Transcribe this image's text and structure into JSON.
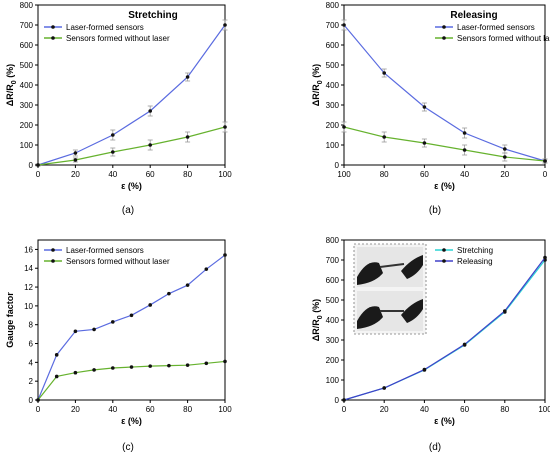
{
  "figure": {
    "panel_labels": [
      "(a)",
      "(b)",
      "(c)",
      "(d)"
    ]
  },
  "chart_data": [
    {
      "type": "line",
      "title": "Stretching",
      "xlabel": "ε (%)",
      "ylabel": "ΔR/R",
      "ylabel_sub": "0",
      "ylabel_unit": " (%)",
      "xlim": [
        0,
        100
      ],
      "ylim": [
        0,
        800
      ],
      "x_ticks": [
        0,
        20,
        40,
        60,
        80,
        100
      ],
      "y_ticks": [
        0,
        100,
        200,
        300,
        400,
        500,
        600,
        700,
        800
      ],
      "x": [
        0,
        20,
        40,
        60,
        80,
        100
      ],
      "legend": "top-left",
      "grid": false,
      "series": [
        {
          "name": "Laser-formed sensors",
          "color": "#5a6be0",
          "values": [
            0,
            60,
            150,
            270,
            440,
            700
          ],
          "errors": [
            5,
            15,
            25,
            25,
            20,
            25
          ]
        },
        {
          "name": "Sensors formed without laser",
          "color": "#66b22e",
          "values": [
            0,
            25,
            65,
            100,
            140,
            190
          ],
          "errors": [
            5,
            10,
            20,
            25,
            25,
            25
          ]
        }
      ]
    },
    {
      "type": "line",
      "title": "Releasing",
      "xlabel": "ε (%)",
      "ylabel": "ΔR/R",
      "ylabel_sub": "0",
      "ylabel_unit": " (%)",
      "x_reversed": true,
      "xlim": [
        100,
        0
      ],
      "ylim": [
        0,
        800
      ],
      "x_ticks": [
        100,
        80,
        60,
        40,
        20,
        0
      ],
      "y_ticks": [
        0,
        100,
        200,
        300,
        400,
        500,
        600,
        700,
        800
      ],
      "x": [
        100,
        80,
        60,
        40,
        20,
        0
      ],
      "legend": "top-right",
      "grid": false,
      "series": [
        {
          "name": "Laser-formed sensors",
          "color": "#5a6be0",
          "values": [
            700,
            460,
            290,
            160,
            80,
            20
          ],
          "errors": [
            25,
            20,
            20,
            25,
            20,
            10
          ]
        },
        {
          "name": "Sensors formed without laser",
          "color": "#66b22e",
          "values": [
            190,
            140,
            110,
            75,
            40,
            20
          ],
          "errors": [
            25,
            25,
            20,
            25,
            20,
            10
          ]
        }
      ]
    },
    {
      "type": "line",
      "title": "",
      "xlabel": "ε (%)",
      "ylabel": "Gauge factor",
      "xlim": [
        0,
        100
      ],
      "ylim": [
        0,
        17
      ],
      "x_ticks": [
        0,
        20,
        40,
        60,
        80,
        100
      ],
      "y_ticks": [
        0,
        2,
        4,
        6,
        8,
        10,
        12,
        14,
        16
      ],
      "x": [
        0,
        10,
        20,
        30,
        40,
        50,
        60,
        70,
        80,
        90,
        100
      ],
      "legend": "top-left",
      "grid": false,
      "series": [
        {
          "name": "Laser-formed sensors",
          "color": "#5a6be0",
          "values": [
            0,
            4.8,
            7.3,
            7.5,
            8.3,
            9.0,
            10.1,
            11.3,
            12.2,
            13.9,
            15.4
          ]
        },
        {
          "name": "Sensors formed without laser",
          "color": "#66b22e",
          "values": [
            0,
            2.5,
            2.9,
            3.2,
            3.4,
            3.5,
            3.6,
            3.65,
            3.7,
            3.9,
            4.1
          ]
        }
      ]
    },
    {
      "type": "line",
      "title": "",
      "xlabel": "ε (%)",
      "ylabel": "ΔR/R",
      "ylabel_sub": "0",
      "ylabel_unit": " (%)",
      "xlim": [
        0,
        100
      ],
      "ylim": [
        0,
        800
      ],
      "x_ticks": [
        0,
        20,
        40,
        60,
        80,
        100
      ],
      "y_ticks": [
        0,
        100,
        200,
        300,
        400,
        500,
        600,
        700,
        800
      ],
      "x": [
        0,
        20,
        40,
        60,
        80,
        100
      ],
      "legend": "top-right",
      "grid": false,
      "inset": "photo",
      "series": [
        {
          "name": "Stretching",
          "color": "#2ad4d4",
          "values": [
            0,
            60,
            150,
            275,
            440,
            700
          ]
        },
        {
          "name": "Releasing",
          "color": "#4040c8",
          "values": [
            0,
            60,
            152,
            278,
            445,
            712
          ]
        }
      ]
    }
  ]
}
